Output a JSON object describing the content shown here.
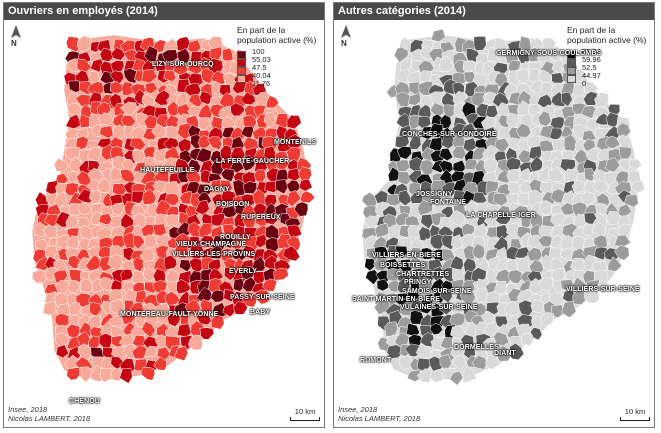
{
  "left": {
    "title": "Ouvriers en employés (2014)",
    "north": "N",
    "legend": {
      "title_line1": "En part de la",
      "title_line2": "population active (%)",
      "breaks": [
        "100",
        "55.03",
        "47.5",
        "40.04",
        "11.76"
      ],
      "colors": [
        "#6b0011",
        "#c40512",
        "#ee3b34",
        "#f7a99a"
      ]
    },
    "source_line1": "Insee, 2018",
    "source_line2": "Nicolas LAMBERT, 2018",
    "scale": "10 km",
    "places": [
      "LIZY-SUR-OURCQ",
      "MONTENILS",
      "LA FERTE-GAUCHER",
      "HAUTEFEUILLE",
      "DAGNY",
      "BOISDON",
      "RUPEREUX",
      "ROUILLY",
      "VIEUX-CHAMPAGNE",
      "VILLIERS-LES-PROVINS",
      "EVERLY",
      "PASSY-SUR-SEINE",
      "MONTEREAU-FAULT-YONNE",
      "BABY",
      "CHENOU"
    ]
  },
  "right": {
    "title": "Autres catégories (2014)",
    "north": "N",
    "legend": {
      "title_line1": "En part de la",
      "title_line2": "population active (%)",
      "breaks": [
        "88.24",
        "59.96",
        "52.5",
        "44.97",
        "0"
      ],
      "colors": [
        "#111111",
        "#5a5a5a",
        "#9c9c9c",
        "#d9d9d9"
      ]
    },
    "source_line1": "Insee, 2018",
    "source_line2": "Nicolas LAMBERT, 2018",
    "scale": "10 km",
    "places": [
      "GERMIGNY-SOUS-COULOMBS",
      "CONCHES-SUR-GONDOIRE",
      "JOSSIGNY",
      "FONTAINE",
      "LA CHAPELLE-IGER",
      "VILLIERS-EN-BIERE",
      "BOISSETTES",
      "CHARTRETTES",
      "PRINGY",
      "SAMOIS-SUR-SEINE",
      "SAINT-MARTIN-EN-BIERE",
      "VULAINES-SUR-SEINE",
      "VILLIERS-SUR-SEINE",
      "RUMONT",
      "DORMELLES",
      "DIANT"
    ]
  }
}
